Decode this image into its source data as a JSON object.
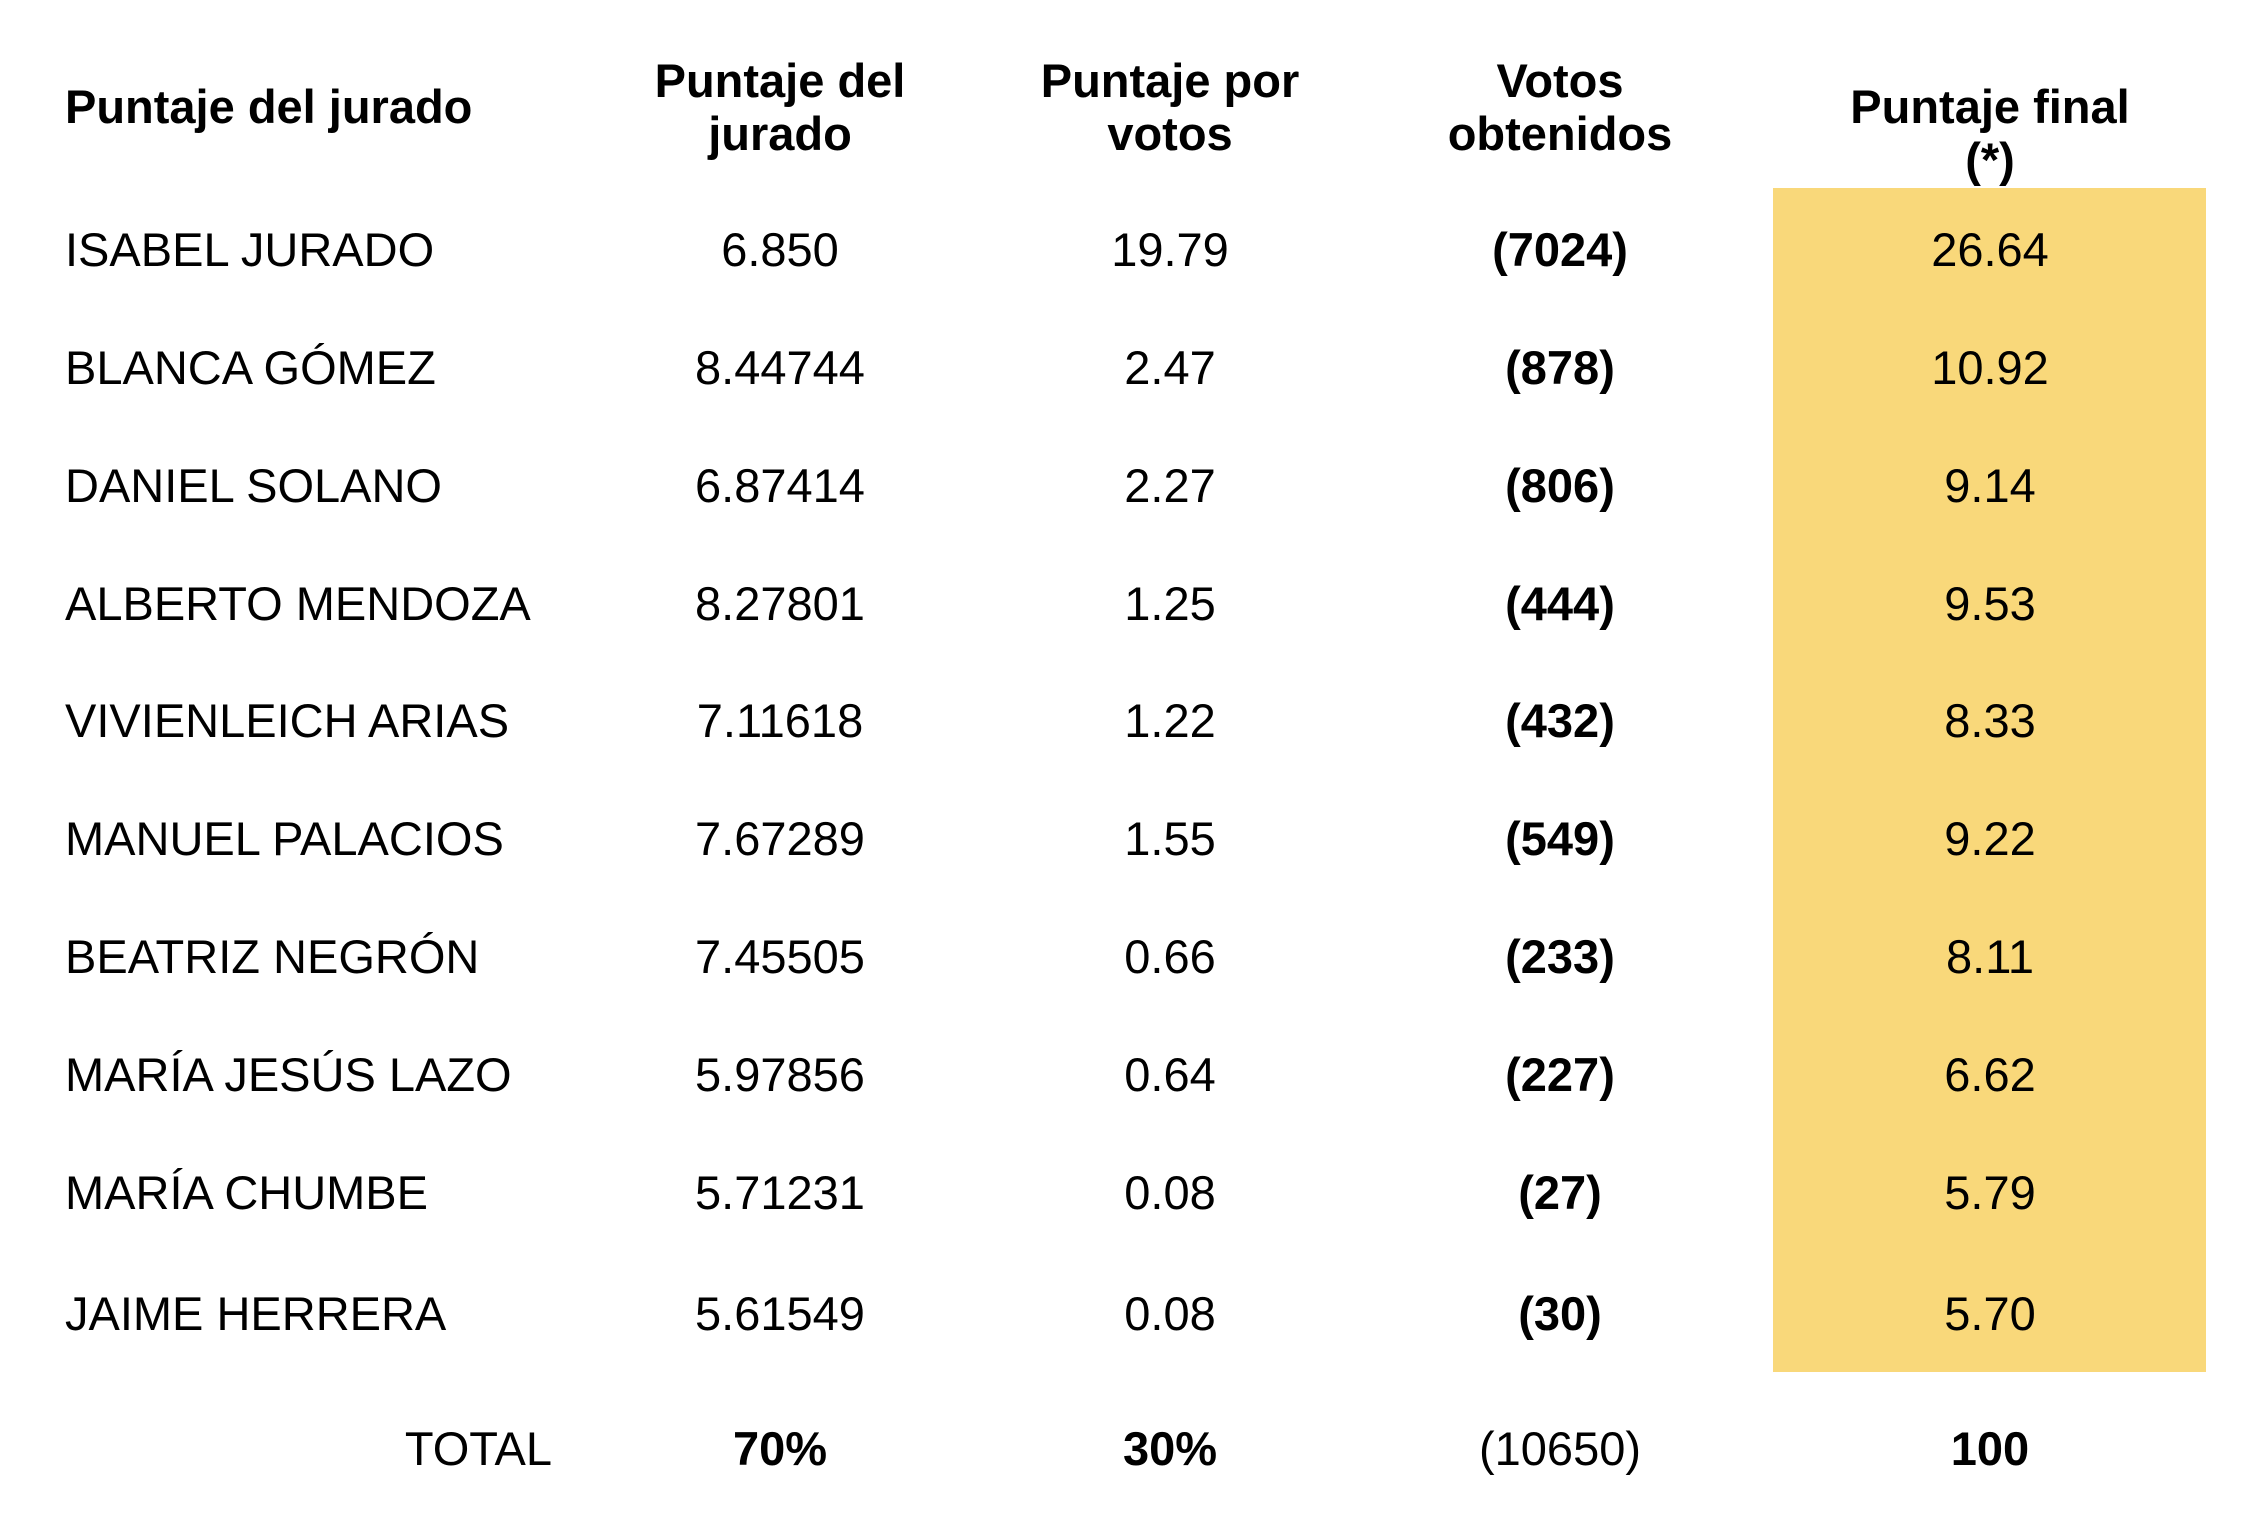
{
  "header": {
    "col0": "Puntaje del jurado",
    "col1_line1": "Puntaje del",
    "col1_line2": "jurado",
    "col2_line1": "Puntaje por",
    "col2_line2": "votos",
    "col3_line1": "Votos",
    "col3_line2": "obtenidos",
    "col4": "Puntaje final (*)"
  },
  "rows": [
    {
      "name": "ISABEL JURADO",
      "jury": "6.850",
      "votes_score": "19.79",
      "votes": "(7024)",
      "final": "26.64"
    },
    {
      "name": "BLANCA GÓMEZ",
      "jury": "8.44744",
      "votes_score": "2.47",
      "votes": "(878)",
      "final": "10.92"
    },
    {
      "name": "DANIEL SOLANO",
      "jury": "6.87414",
      "votes_score": "2.27",
      "votes": "(806)",
      "final": "9.14"
    },
    {
      "name": "ALBERTO MENDOZA",
      "jury": "8.27801",
      "votes_score": "1.25",
      "votes": "(444)",
      "final": "9.53"
    },
    {
      "name": "VIVIENLEICH ARIAS",
      "jury": "7.11618",
      "votes_score": "1.22",
      "votes": "(432)",
      "final": "8.33"
    },
    {
      "name": "MANUEL PALACIOS",
      "jury": "7.67289",
      "votes_score": "1.55",
      "votes": "(549)",
      "final": "9.22"
    },
    {
      "name": "BEATRIZ NEGRÓN",
      "jury": "7.45505",
      "votes_score": "0.66",
      "votes": "(233)",
      "final": "8.11"
    },
    {
      "name": "MARÍA JESÚS LAZO",
      "jury": "5.97856",
      "votes_score": "0.64",
      "votes": "(227)",
      "final": "6.62"
    },
    {
      "name": "MARÍA CHUMBE",
      "jury": "5.71231",
      "votes_score": "0.08",
      "votes": "(27)",
      "final": "5.79"
    },
    {
      "name": "JAIME HERRERA",
      "jury": "5.61549",
      "votes_score": "0.08",
      "votes": "(30)",
      "final": "5.70"
    }
  ],
  "total": {
    "label": "TOTAL",
    "jury": "70%",
    "votes_score": "30%",
    "votes": "(10650)",
    "final": "100"
  },
  "colors": {
    "highlight": "#F9D87A",
    "text": "#000000",
    "background": "#FFFFFF"
  }
}
